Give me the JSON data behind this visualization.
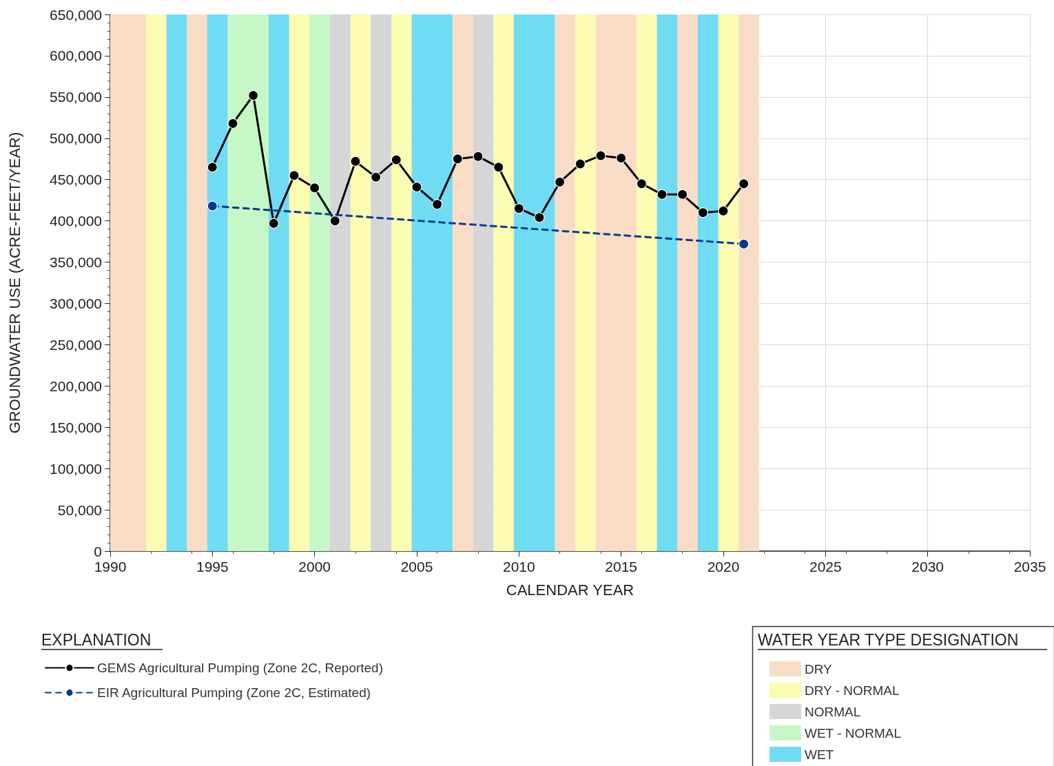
{
  "chart_data": {
    "type": "line",
    "xlabel": "CALENDAR YEAR",
    "ylabel": "GROUNDWATER USE (ACRE-FEET/YEAR)",
    "legend_title": "EXPLANATION",
    "annotations": [
      "WATER YEAR TYPE DESIGNATION"
    ],
    "xlim": [
      1990,
      2035
    ],
    "xticks": [
      1990,
      1995,
      2000,
      2005,
      2010,
      2015,
      2020,
      2025,
      2030,
      2035
    ],
    "ylim": [
      0,
      650000
    ],
    "yticks": [
      0,
      {
        "value": 50000,
        "label": "50,000"
      },
      {
        "value": 100000,
        "label": "100,000"
      },
      {
        "value": 150000,
        "label": "150,000"
      },
      {
        "value": 200000,
        "label": "200,000"
      },
      {
        "value": 250000,
        "label": "250,000"
      },
      {
        "value": 300000,
        "label": "300,000"
      },
      {
        "value": 350000,
        "label": "350,000"
      },
      {
        "value": 400000,
        "label": "400,000"
      },
      {
        "value": 450000,
        "label": "450,000"
      },
      {
        "value": 500000,
        "label": "500,000"
      },
      {
        "value": 550000,
        "label": "550,000"
      },
      {
        "value": 600000,
        "label": "600,000"
      },
      {
        "value": 650000,
        "label": "650,000"
      }
    ],
    "grid": true,
    "legend": "bottom left",
    "marker": "circle",
    "series": [
      {
        "name": "GEMS Agricultural Pumping (Zone 2C, Reported)",
        "color": "#000000",
        "line_style": "solid",
        "x": [
          1995,
          1996,
          1997,
          1998,
          1999,
          2000,
          2001,
          2002,
          2003,
          2004,
          2005,
          2006,
          2007,
          2008,
          2009,
          2010,
          2011,
          2012,
          2013,
          2014,
          2015,
          2016,
          2017,
          2018,
          2019,
          2020,
          2021
        ],
        "values": [
          465000,
          518000,
          552000,
          397000,
          455000,
          440000,
          400000,
          472000,
          453000,
          474000,
          441000,
          420000,
          475000,
          478000,
          465000,
          415000,
          404000,
          447000,
          469000,
          479000,
          476000,
          445000,
          432000,
          432000,
          410000,
          412000,
          445000
        ]
      },
      {
        "name": "EIR Agricultural Pumping (Zone 2C, Estimated)",
        "color": "#0a3a8c",
        "line_style": "dashed",
        "x": [
          1995,
          2021
        ],
        "values": [
          418000,
          372000
        ]
      }
    ],
    "bands": [
      {
        "axis": "x",
        "from": 1990,
        "to": 1991.75,
        "label": "DRY",
        "color": "#f9dcc6"
      },
      {
        "axis": "x",
        "from": 1991.75,
        "to": 1992.75,
        "label": "DRY - NORMAL",
        "color": "#fbfbb2"
      },
      {
        "axis": "x",
        "from": 2000.75,
        "to": 2001.75,
        "label": "NORMAL",
        "color": "#d6d6d6"
      },
      {
        "axis": "x",
        "from": 1995.75,
        "to": 1997.75,
        "label": "WET - NORMAL",
        "color": "#c6f7c6"
      },
      {
        "axis": "x",
        "from": 1992.75,
        "to": 1993.75,
        "label": "WET",
        "color": "#6fdcf4"
      },
      {
        "axis": "x",
        "from": 1993.75,
        "to": 1994.75,
        "color": "#f9dcc6"
      },
      {
        "axis": "x",
        "from": 1994.75,
        "to": 1995.75,
        "color": "#6fdcf4"
      },
      {
        "axis": "x",
        "from": 1997.75,
        "to": 1998.75,
        "color": "#6fdcf4"
      },
      {
        "axis": "x",
        "from": 1998.75,
        "to": 1999.75,
        "color": "#fbfbb2"
      },
      {
        "axis": "x",
        "from": 1999.75,
        "to": 2000.75,
        "color": "#c6f7c6"
      },
      {
        "axis": "x",
        "from": 2001.75,
        "to": 2002.75,
        "color": "#fbfbb2"
      },
      {
        "axis": "x",
        "from": 2002.75,
        "to": 2003.75,
        "color": "#d6d6d6"
      },
      {
        "axis": "x",
        "from": 2003.75,
        "to": 2004.75,
        "color": "#fbfbb2"
      },
      {
        "axis": "x",
        "from": 2004.75,
        "to": 2006.75,
        "color": "#6fdcf4"
      },
      {
        "axis": "x",
        "from": 2006.75,
        "to": 2007.75,
        "color": "#f9dcc6"
      },
      {
        "axis": "x",
        "from": 2007.75,
        "to": 2008.75,
        "color": "#d6d6d6"
      },
      {
        "axis": "x",
        "from": 2008.75,
        "to": 2009.75,
        "color": "#fbfbb2"
      },
      {
        "axis": "x",
        "from": 2009.75,
        "to": 2011.75,
        "color": "#6fdcf4"
      },
      {
        "axis": "x",
        "from": 2011.75,
        "to": 2012.75,
        "color": "#f9dcc6"
      },
      {
        "axis": "x",
        "from": 2012.75,
        "to": 2013.75,
        "color": "#fbfbb2"
      },
      {
        "axis": "x",
        "from": 2013.75,
        "to": 2015.75,
        "color": "#f9dcc6"
      },
      {
        "axis": "x",
        "from": 2015.75,
        "to": 2016.75,
        "color": "#fbfbb2"
      },
      {
        "axis": "x",
        "from": 2016.75,
        "to": 2017.75,
        "color": "#6fdcf4"
      },
      {
        "axis": "x",
        "from": 2017.75,
        "to": 2018.75,
        "color": "#f9dcc6"
      },
      {
        "axis": "x",
        "from": 2018.75,
        "to": 2019.75,
        "color": "#6fdcf4"
      },
      {
        "axis": "x",
        "from": 2019.75,
        "to": 2020.75,
        "color": "#fbfbb2"
      },
      {
        "axis": "x",
        "from": 2020.75,
        "to": 2021.75,
        "color": "#f9dcc6"
      }
    ]
  }
}
